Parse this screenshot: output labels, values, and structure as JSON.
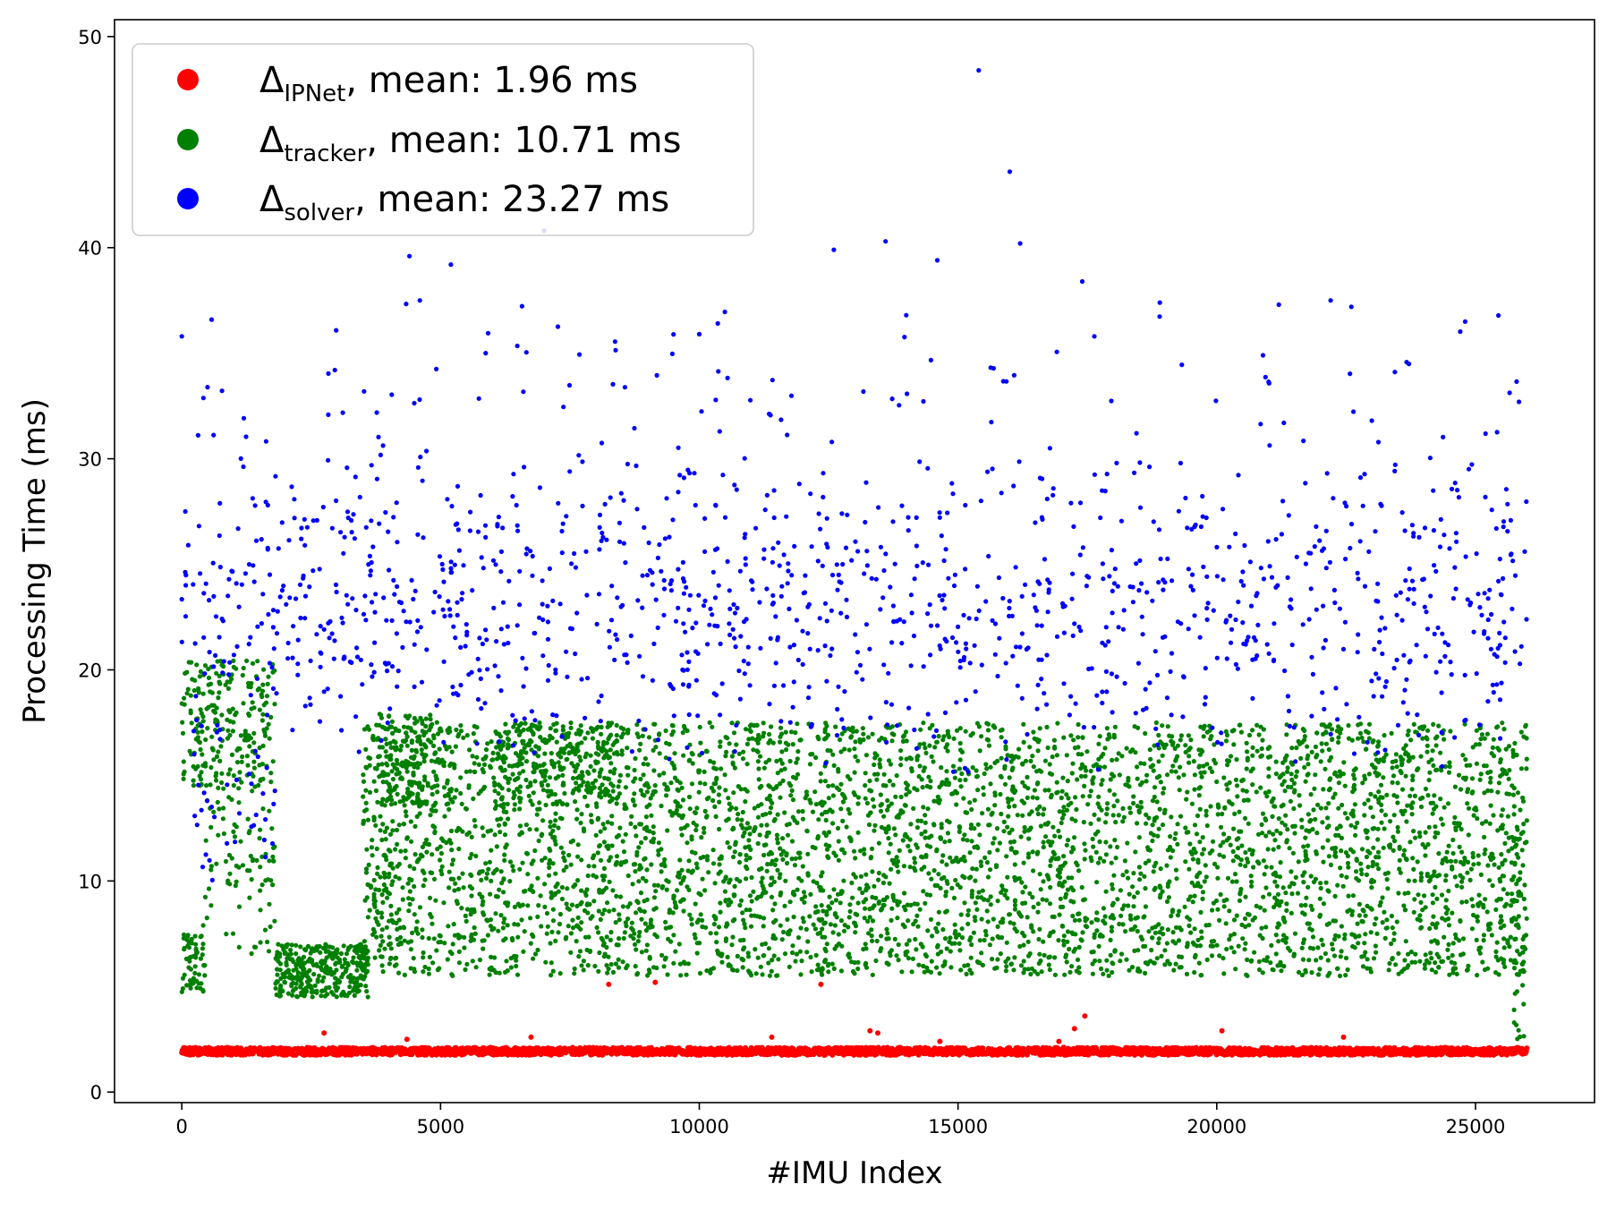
{
  "chart_data": {
    "type": "scatter",
    "xlabel": "#IMU Index",
    "ylabel": "Processing Time (ms)",
    "xlim": [
      -1300,
      27300
    ],
    "ylim": [
      -0.5,
      50.8
    ],
    "xticks": [
      0,
      5000,
      10000,
      15000,
      20000,
      25000
    ],
    "yticks": [
      0,
      10,
      20,
      30,
      40,
      50
    ],
    "x_index_range": [
      0,
      26000
    ],
    "legend_position": "upper-left",
    "grid": false,
    "series": [
      {
        "key": "ipnet",
        "legend_symbol": "Δ",
        "legend_subscript": "IPNet",
        "legend_suffix": ", mean: 1.96 ms",
        "color": "#ff0000",
        "mean": 1.96,
        "band": {
          "min": 1.7,
          "max": 2.3
        },
        "outliers": [
          [
            8250,
            5.1
          ],
          [
            9150,
            5.2
          ],
          [
            12350,
            5.1
          ],
          [
            13300,
            2.9
          ],
          [
            13450,
            2.8
          ],
          [
            17250,
            3.0
          ],
          [
            17450,
            3.6
          ],
          [
            20100,
            2.9
          ],
          [
            2750,
            2.8
          ],
          [
            6750,
            2.6
          ],
          [
            4350,
            2.5
          ],
          [
            22450,
            2.6
          ],
          [
            16950,
            2.4
          ],
          [
            11400,
            2.6
          ],
          [
            14650,
            2.4
          ]
        ]
      },
      {
        "key": "tracker",
        "legend_symbol": "Δ",
        "legend_subscript": "tracker",
        "legend_suffix": ", mean: 10.71 ms",
        "color": "#008000",
        "mean": 10.71,
        "clusters": [
          {
            "x": [
              0,
              450
            ],
            "y": [
              4.5,
              7.5
            ],
            "count": 60
          },
          {
            "x": [
              0,
              1800
            ],
            "y": [
              14.5,
              20.5
            ],
            "count": 230
          },
          {
            "x": [
              400,
              1800
            ],
            "y": [
              6.5,
              14.5
            ],
            "count": 90
          },
          {
            "x": [
              1800,
              3600
            ],
            "y": [
              4.5,
              7.0
            ],
            "count": 340
          },
          {
            "x": [
              3500,
              26000
            ],
            "y": [
              5.5,
              17.5
            ],
            "count": 4700
          },
          {
            "x": [
              3700,
              5200
            ],
            "y": [
              13.5,
              18.0
            ],
            "count": 160
          },
          {
            "x": [
              6000,
              8500
            ],
            "y": [
              14.0,
              17.5
            ],
            "count": 200
          },
          {
            "x": [
              25700,
              26000
            ],
            "y": [
              2.5,
              13.5
            ],
            "count": 45
          }
        ]
      },
      {
        "key": "solver",
        "legend_symbol": "Δ",
        "legend_subscript": "solver",
        "legend_suffix": ", mean: 23.27 ms",
        "color": "#0000ff",
        "mean": 23.27,
        "clusters": [
          {
            "x": [
              0,
              26000
            ],
            "y": [
              15.0,
              31.0
            ],
            "count": 1250
          },
          {
            "x": [
              0,
              26000
            ],
            "y": [
              28.0,
              38.0
            ],
            "count": 110
          },
          {
            "x": [
              200,
              1800
            ],
            "y": [
              9.5,
              18.0
            ],
            "count": 35
          }
        ],
        "outliers": [
          [
            0,
            35.8
          ],
          [
            7000,
            40.8
          ],
          [
            15400,
            48.4
          ],
          [
            16000,
            43.6
          ],
          [
            4400,
            39.6
          ],
          [
            5200,
            39.2
          ],
          [
            12600,
            39.9
          ],
          [
            13600,
            40.3
          ],
          [
            14600,
            39.4
          ],
          [
            16200,
            40.2
          ],
          [
            4600,
            37.5
          ],
          [
            17400,
            38.4
          ],
          [
            22200,
            37.5
          ],
          [
            18900,
            37.4
          ],
          [
            21200,
            37.3
          ],
          [
            22600,
            37.2
          ],
          [
            24800,
            36.5
          ],
          [
            14000,
            36.8
          ],
          [
            10000,
            35.9
          ]
        ]
      }
    ]
  }
}
